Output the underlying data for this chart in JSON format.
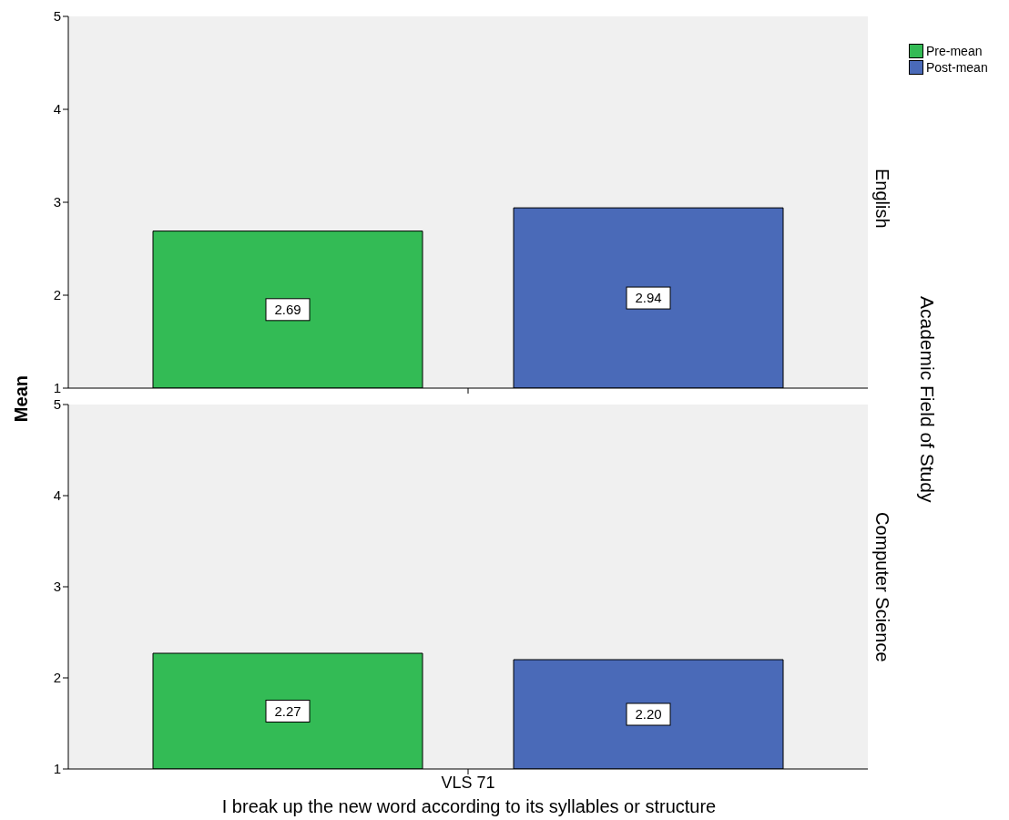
{
  "chart_data": [
    {
      "type": "bar",
      "title": "English",
      "ylabel": "Mean",
      "annotations": [
        "Academic Field of Study"
      ],
      "categories": [
        null
      ],
      "series": [
        {
          "name": "Pre-mean",
          "color": "#33bb55",
          "values": [
            2.69
          ],
          "value_labels": [
            "2.69"
          ]
        },
        {
          "name": "Post-mean",
          "color": "#4a6ab8",
          "values": [
            2.94
          ],
          "value_labels": [
            "2.94"
          ]
        }
      ],
      "ylim": [
        1,
        5
      ],
      "yticks": [
        1,
        2,
        3,
        4,
        5
      ],
      "legend": "top right",
      "tick_labels": "y"
    },
    {
      "type": "bar",
      "title": "Computer Science",
      "xlabel": "I break up the new word according to its syllables or structure",
      "categories": [
        "VLS 71"
      ],
      "series": [
        {
          "color": "#33bb55",
          "values": [
            2.27
          ],
          "value_labels": [
            "2.27"
          ]
        },
        {
          "color": "#4a6ab8",
          "values": [
            2.2
          ],
          "value_labels": [
            "2.20"
          ]
        }
      ],
      "ylim": [
        1,
        5
      ],
      "yticks": [
        1,
        2,
        3,
        4,
        5
      ]
    }
  ]
}
